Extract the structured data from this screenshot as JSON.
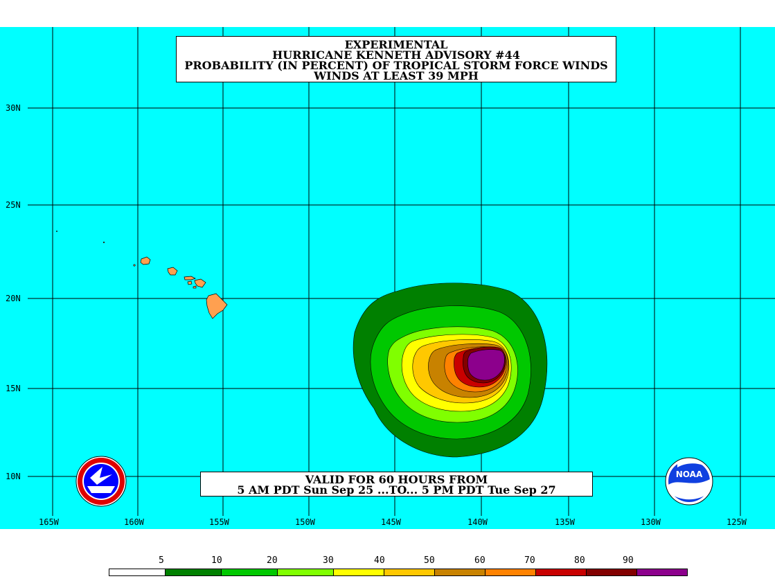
{
  "title": {
    "line1": "EXPERIMENTAL",
    "line2": "HURRICANE KENNETH ADVISORY #44",
    "line3": "PROBABILITY (IN PERCENT) OF TROPICAL STORM FORCE WINDS",
    "line4": "WINDS AT LEAST 39 MPH"
  },
  "valid": {
    "line1": "VALID FOR 60 HOURS FROM",
    "line2": "5 AM PDT Sun Sep 25 ...TO... 5 PM PDT Tue Sep 27"
  },
  "lat_labels": [
    "30N",
    "25N",
    "20N",
    "15N",
    "10N"
  ],
  "lon_labels": [
    "165W",
    "160W",
    "155W",
    "150W",
    "145W",
    "140W",
    "135W",
    "130W",
    "125W"
  ],
  "legend": {
    "labels": [
      "5",
      "10",
      "20",
      "30",
      "40",
      "50",
      "60",
      "70",
      "80",
      "90"
    ],
    "colors": [
      "#ffffff",
      "#008000",
      "#00c800",
      "#80ff00",
      "#ffff00",
      "#ffc800",
      "#c88200",
      "#ff8200",
      "#c80000",
      "#820000",
      "#8c008c"
    ]
  },
  "colors": {
    "ocean": "#00ffff",
    "land": "#ffa050",
    "grid": "#000000"
  },
  "logos": {
    "left": "NOAA National Weather Service logo",
    "right": "NOAA logo",
    "right_text": "NOAA"
  }
}
